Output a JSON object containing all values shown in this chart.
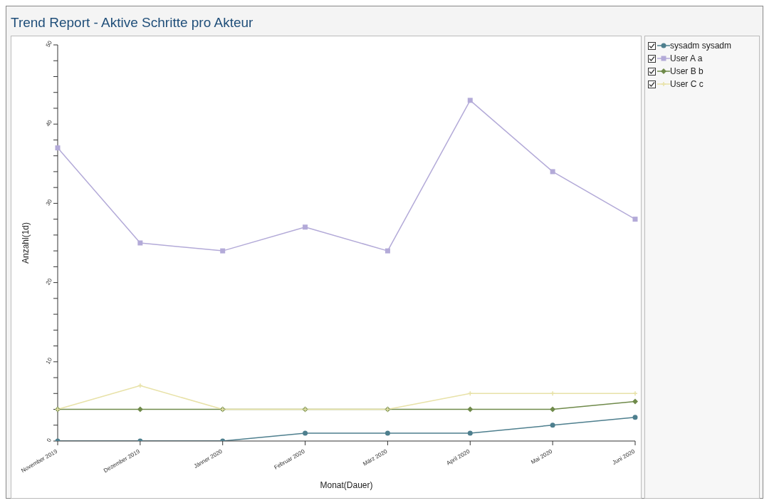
{
  "chart_data": {
    "type": "line",
    "title": "Trend Report - Aktive Schritte pro Akteur",
    "xlabel": "Monat(Dauer)",
    "ylabel": "Anzahl(1d)",
    "categories": [
      "November 2019",
      "Dezember 2019",
      "Jänner 2020",
      "Februar 2020",
      "März 2020",
      "April 2020",
      "Mai 2020",
      "Juni 2020"
    ],
    "series": [
      {
        "name": "sysadm sysadm",
        "color": "#4e7f8e",
        "marker": "circle",
        "values": [
          0,
          0,
          0,
          1,
          1,
          1,
          2,
          3
        ]
      },
      {
        "name": "User A a",
        "color": "#b3aad8",
        "marker": "square",
        "values": [
          37,
          25,
          24,
          27,
          24,
          43,
          34,
          28
        ]
      },
      {
        "name": "User B b",
        "color": "#6f8a4a",
        "marker": "diamond",
        "values": [
          4,
          4,
          4,
          4,
          4,
          4,
          4,
          5
        ]
      },
      {
        "name": "User C c",
        "color": "#e8e2a8",
        "marker": "cross",
        "values": [
          4,
          7,
          4,
          4,
          4,
          6,
          6,
          6
        ]
      }
    ],
    "ylim": [
      0,
      50
    ],
    "yticks": [
      0,
      {
        "value": 2,
        "label": null
      },
      {
        "value": 4,
        "label": null
      },
      {
        "value": 6,
        "label": null
      },
      {
        "value": 8,
        "label": null
      },
      10,
      {
        "value": 12,
        "label": null
      },
      {
        "value": 14,
        "label": null
      },
      {
        "value": 16,
        "label": null
      },
      {
        "value": 18,
        "label": null
      },
      20,
      {
        "value": 22,
        "label": null
      },
      {
        "value": 24,
        "label": null
      },
      {
        "value": 26,
        "label": null
      },
      {
        "value": 28,
        "label": null
      },
      30,
      {
        "value": 32,
        "label": null
      },
      {
        "value": 34,
        "label": null
      },
      {
        "value": 36,
        "label": null
      },
      {
        "value": 38,
        "label": null
      },
      40,
      {
        "value": 42,
        "label": null
      },
      {
        "value": 44,
        "label": null
      },
      {
        "value": 46,
        "label": null
      },
      {
        "value": 48,
        "label": null
      },
      50
    ],
    "legend": "right",
    "line_style": "solid"
  }
}
